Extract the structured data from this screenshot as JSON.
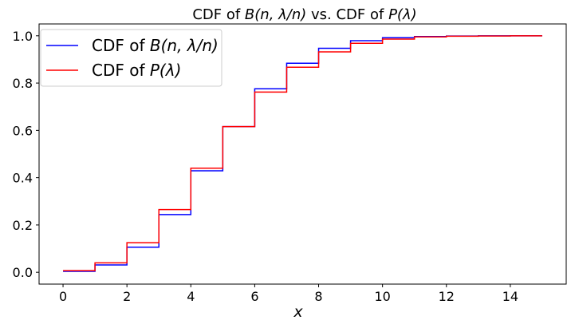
{
  "chart_data": {
    "type": "line",
    "step": true,
    "title": {
      "prefix": "CDF of ",
      "left_math": "B(n, λ/n)",
      "middle": " vs. CDF of ",
      "right_math": "P(λ)"
    },
    "xlabel": "x",
    "ylabel": "",
    "xlim": [
      -0.75,
      15.75
    ],
    "ylim": [
      -0.05,
      1.05
    ],
    "xticks": [
      0,
      2,
      4,
      6,
      8,
      10,
      12,
      14
    ],
    "xtick_labels": [
      "0",
      "2",
      "4",
      "6",
      "8",
      "10",
      "12",
      "14"
    ],
    "yticks": [
      0.0,
      0.2,
      0.4,
      0.6,
      0.8,
      1.0
    ],
    "ytick_labels": [
      "0.0",
      "0.2",
      "0.4",
      "0.6",
      "0.8",
      "1.0"
    ],
    "grid": false,
    "legend_position": "top-left",
    "x": [
      0,
      1,
      2,
      3,
      4,
      5,
      6,
      7,
      8,
      9,
      10,
      11,
      12,
      13,
      14,
      15
    ],
    "series": [
      {
        "legend_prefix": "CDF of ",
        "legend_math": "B(n, λ/n)",
        "color": "#0000ff",
        "values": [
          0.004,
          0.031,
          0.106,
          0.244,
          0.429,
          0.616,
          0.776,
          0.884,
          0.947,
          0.979,
          0.992,
          0.997,
          0.999,
          1.0,
          1.0,
          1.0
        ]
      },
      {
        "legend_prefix": "CDF of ",
        "legend_math": "P(λ)",
        "color": "#ff0000",
        "values": [
          0.007,
          0.04,
          0.125,
          0.265,
          0.44,
          0.616,
          0.762,
          0.867,
          0.932,
          0.968,
          0.986,
          0.995,
          0.998,
          0.999,
          1.0,
          1.0
        ]
      }
    ]
  }
}
